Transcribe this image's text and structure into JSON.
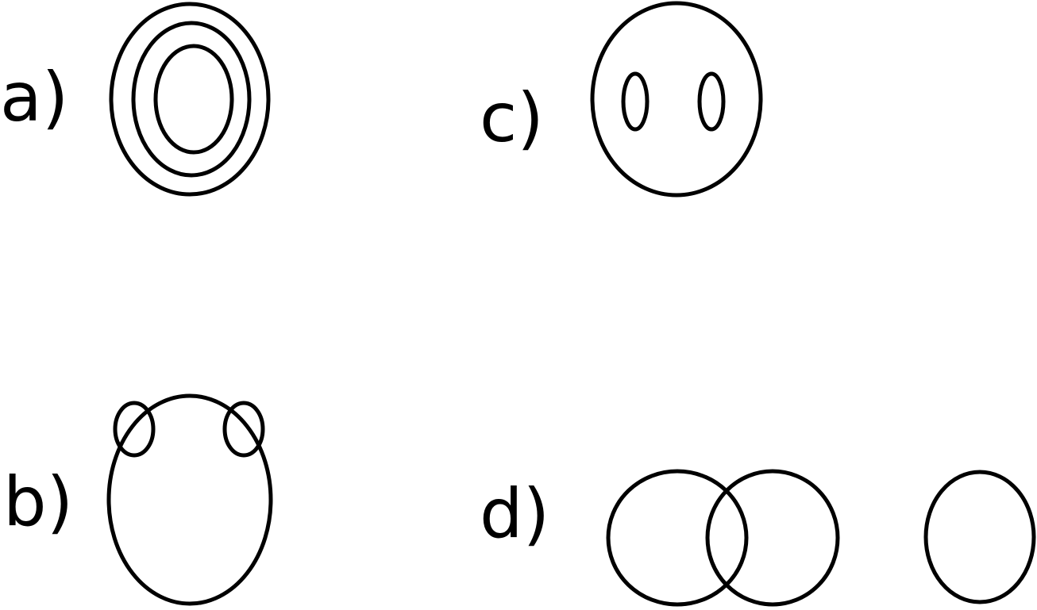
{
  "colors": {
    "background": "#ffffff",
    "stroke": "#000000"
  },
  "panels": {
    "a": {
      "label": "a)",
      "description_count_rings": 3
    },
    "b": {
      "label": "b)"
    },
    "c": {
      "label": "c)"
    },
    "d": {
      "label": "d)"
    }
  }
}
